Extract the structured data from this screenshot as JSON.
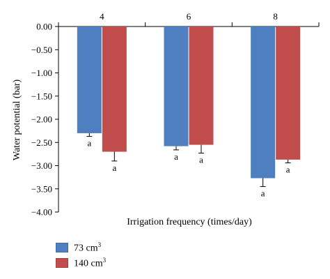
{
  "chart_data": {
    "type": "bar",
    "categories": [
      "4",
      "6",
      "8"
    ],
    "series": [
      {
        "name": "73 cm",
        "name_sup": "3",
        "color": "#4e7fc0",
        "values": [
          -2.3,
          -2.58,
          -3.27
        ],
        "errors": [
          0.07,
          0.08,
          0.18
        ],
        "sig": [
          "a",
          "a",
          "a"
        ]
      },
      {
        "name": "140 cm",
        "name_sup": "3",
        "color": "#c14d4c",
        "values": [
          -2.7,
          -2.55,
          -2.87
        ],
        "errors": [
          0.2,
          0.18,
          0.07
        ],
        "sig": [
          "a",
          "a",
          "a"
        ]
      }
    ],
    "xlabel": "Irrigation frequency (times/day)",
    "ylabel": "Water potential (bar)",
    "ylim": [
      -4.0,
      0.0
    ],
    "yticks": [
      "0.00",
      "−0.50",
      "−1.00",
      "−1.50",
      "−2.00",
      "−2.50",
      "−3.00",
      "−3.50",
      "−4.00"
    ],
    "category_axis_position": "top",
    "legend_position": "bottom-left",
    "grid": false
  }
}
